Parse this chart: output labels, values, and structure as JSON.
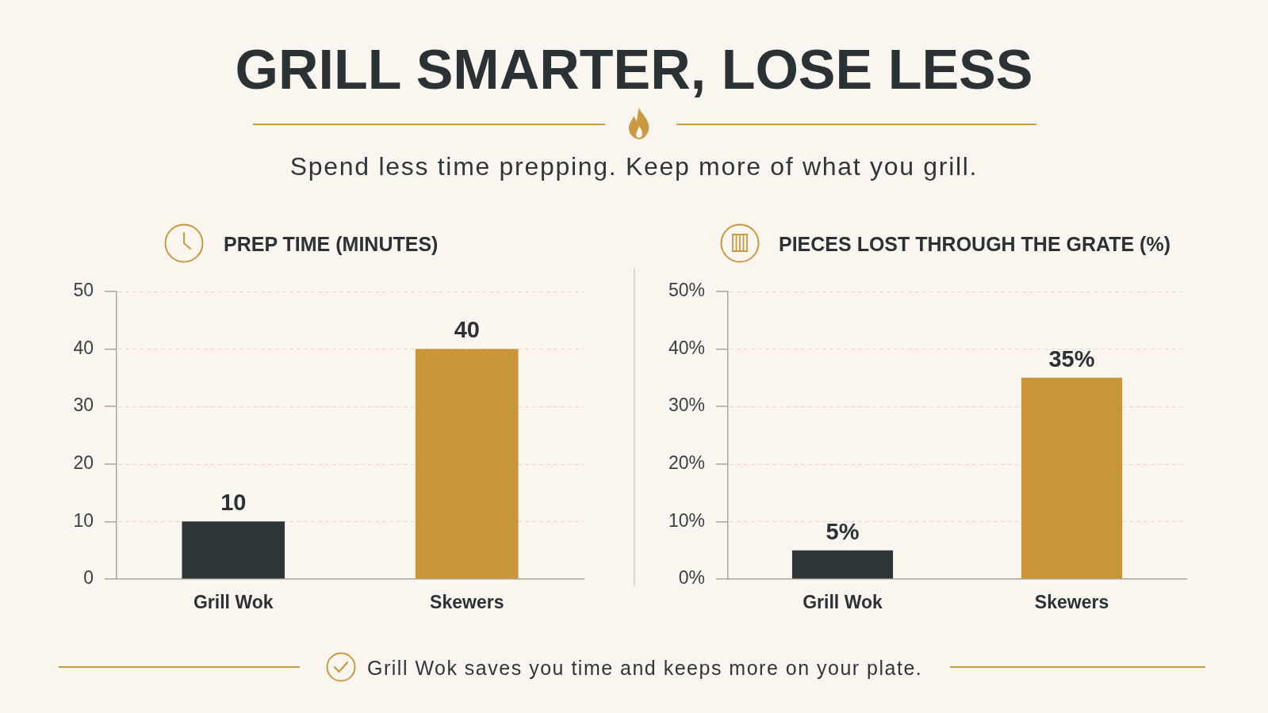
{
  "chart_data": [
    {
      "type": "other",
      "title": "GRILL SMARTER, LOSE LESS",
      "subtitle": "Spend less time prepping. Keep more of what you grill."
    },
    {
      "type": "bar",
      "title": "PREP TIME (MINUTES)",
      "categories": [
        "Grill Wok",
        "Skewers"
      ],
      "values": [
        10,
        40
      ],
      "colors": [
        "#2d3538",
        "#c9953a"
      ],
      "ylim": [
        0,
        50
      ],
      "yticks": [
        0,
        10,
        20,
        30,
        40,
        50
      ],
      "grid": "y",
      "data_labels": true
    },
    {
      "type": "bar",
      "title": "PIECES LOST THROUGH THE GRATE (%)",
      "categories": [
        "Grill Wok",
        "Skewers"
      ],
      "values": [
        5,
        35
      ],
      "colors": [
        "#2d3538",
        "#c9953a"
      ],
      "ylim": [
        0,
        50
      ],
      "yticks": [
        {
          "value": 0,
          "label": "0%"
        },
        {
          "value": 10,
          "label": "10%"
        },
        {
          "value": 20,
          "label": "20%"
        },
        {
          "value": 30,
          "label": "30%"
        },
        {
          "value": 40,
          "label": "40%"
        },
        {
          "value": 50,
          "label": "50%"
        }
      ],
      "grid": "y",
      "value_labels": [
        "5%",
        "35%"
      ]
    },
    {
      "type": "other",
      "annotations": [
        "Grill Wok saves you time and keeps more on your plate."
      ]
    }
  ]
}
